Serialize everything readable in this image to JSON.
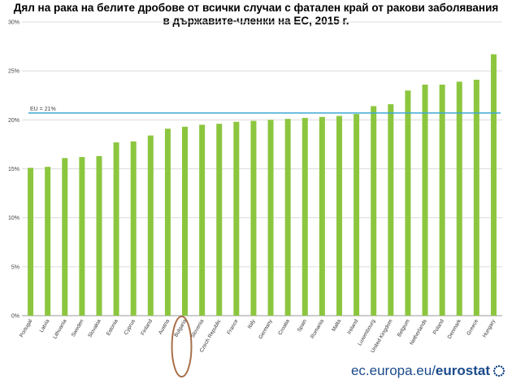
{
  "chart_data": {
    "type": "bar",
    "title_line1": "Дял на рака на белите дробове от всички случаи с фатален край от ракови заболявания",
    "title_line2": "в държавите-членки на ЕС, 2015 г.",
    "categories": [
      "Portugal",
      "Latvia",
      "Lithuania",
      "Sweden",
      "Slovakia",
      "Estonia",
      "Cyprus",
      "Finland",
      "Austria",
      "Bulgaria",
      "Slovenia",
      "Czech Republic",
      "France",
      "Italy",
      "Germany",
      "Croatia",
      "Spain",
      "Romania",
      "Malta",
      "Ireland",
      "Luxembourg",
      "United Kingdom",
      "Belgium",
      "Netherlands",
      "Poland",
      "Denmark",
      "Greece",
      "Hungary"
    ],
    "values": [
      15.1,
      15.2,
      16.1,
      16.2,
      16.3,
      17.7,
      17.8,
      18.4,
      19.1,
      19.3,
      19.5,
      19.6,
      19.8,
      19.9,
      20.0,
      20.1,
      20.2,
      20.3,
      20.4,
      20.6,
      21.4,
      21.6,
      23.0,
      23.6,
      23.6,
      23.9,
      24.1,
      26.7
    ],
    "ylim": [
      0,
      30
    ],
    "yticks": [
      "0%",
      "5%",
      "10%",
      "15%",
      "20%",
      "25%",
      "30%"
    ],
    "reference_line": {
      "label": "EU = 21%",
      "value": 20.7,
      "color": "#3fa9d5"
    },
    "highlight": "Bulgaria",
    "bar_color": "#8cc63f",
    "grid": true
  },
  "footer": {
    "site": "ec.europa.eu/",
    "brand": "eurostat"
  }
}
